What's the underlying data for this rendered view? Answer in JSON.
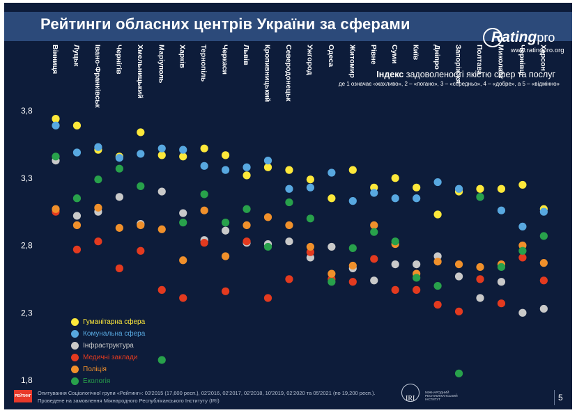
{
  "header": {
    "title": "Рейтинги обласних центрів України за сферами",
    "logo_main": "Rating",
    "logo_suffix": "pro",
    "logo_url": "www.ratingpro.org"
  },
  "colors": {
    "Гуманітарна сфера": "#fde83a",
    "Комунальна сфера": "#58a8e0",
    "Інфраструктура": "#c9c9c9",
    "Медичні заклади": "#e33a1f",
    "Поліція": "#f0902b",
    "Екологія": "#28a14b"
  },
  "chart_data": {
    "type": "scatter",
    "title_bold": "Індекс",
    "title": "задоволеності якістю сфер та послуг",
    "subtitle": "де 1 означає «жахливо», 2 – «погано», 3 – «середньо», 4 – «добре», а 5 – «відмінно»",
    "yticks": [
      "3,8",
      "3,3",
      "2,8",
      "2,3",
      "1,8"
    ],
    "ylim": [
      1.8,
      3.8
    ],
    "legend_position": "bottom-left",
    "categories": [
      "Вінниця",
      "Луцьк",
      "Івано-Франківськ",
      "Чернігів",
      "Хмельницький",
      "Маріуполь",
      "Харків",
      "Тернопіль",
      "Черкаси",
      "Львів",
      "Кропивницький",
      "Северодонецьк",
      "Ужгород",
      "Одеса",
      "Житомир",
      "Рівне",
      "Суми",
      "Київ",
      "Дніпро",
      "Запоріжжя",
      "Полтава",
      "Миколаїв",
      "Чернівці",
      "Херсон"
    ],
    "series": [
      {
        "name": "Гуманітарна сфера",
        "values": [
          3.74,
          3.69,
          3.51,
          3.46,
          3.64,
          3.47,
          3.46,
          3.52,
          3.47,
          3.32,
          3.38,
          3.36,
          3.29,
          3.15,
          3.36,
          3.23,
          3.3,
          3.23,
          3.03,
          3.2,
          3.22,
          3.22,
          3.25,
          3.07
        ]
      },
      {
        "name": "Комунальна сфера",
        "values": [
          3.69,
          3.49,
          3.53,
          3.45,
          3.48,
          3.52,
          3.51,
          3.39,
          3.36,
          3.38,
          3.43,
          3.22,
          3.23,
          3.34,
          3.13,
          3.19,
          3.15,
          3.15,
          3.27,
          3.22,
          3.16,
          3.06,
          2.94,
          3.05
        ]
      },
      {
        "name": "Інфраструктура",
        "values": [
          3.43,
          3.02,
          3.05,
          3.16,
          2.96,
          3.2,
          3.04,
          2.84,
          2.91,
          2.82,
          2.81,
          2.83,
          2.71,
          2.79,
          2.63,
          2.54,
          2.66,
          2.66,
          2.72,
          2.57,
          2.41,
          2.53,
          2.3,
          2.33
        ]
      },
      {
        "name": "Медичні заклади",
        "values": [
          3.05,
          2.77,
          2.83,
          2.63,
          2.76,
          2.47,
          2.41,
          2.82,
          2.46,
          2.83,
          2.41,
          2.55,
          2.75,
          2.55,
          2.53,
          2.7,
          2.47,
          2.47,
          2.36,
          2.31,
          2.55,
          2.37,
          2.71,
          2.54
        ]
      },
      {
        "name": "Поліція",
        "values": [
          3.07,
          2.95,
          3.08,
          2.93,
          2.95,
          2.92,
          2.69,
          3.06,
          2.72,
          2.95,
          3.01,
          2.95,
          2.79,
          2.59,
          2.65,
          2.95,
          2.81,
          2.59,
          2.68,
          2.66,
          2.64,
          2.66,
          2.8,
          2.67
        ]
      },
      {
        "name": "Екологія",
        "values": [
          3.46,
          3.15,
          3.29,
          3.37,
          3.24,
          1.95,
          2.97,
          3.18,
          2.97,
          3.07,
          2.79,
          3.12,
          3.0,
          2.53,
          2.78,
          2.9,
          2.83,
          2.56,
          2.5,
          1.85,
          3.16,
          2.64,
          2.76,
          2.87
        ]
      }
    ]
  },
  "footer": {
    "logo_text": "РЕЙТИНГ",
    "line1": "Опитування Соціологічної групи «Рейтинг»: 03'2015 (17,600 респ.), 02'2016, 02'2017, 02'2018, 10'2019, 02'2020 та 05'2021 (по 19,200 респ.).",
    "line2": "Проведене на замовлення Міжнародного Республіканського Інституту (IRI)",
    "iri_abbr": "IRI",
    "iri_name": "МІЖНАРОДНИЙ РЕСПУБЛІКАНСЬКИЙ ІНСТИТУТ",
    "page_number": "5"
  }
}
